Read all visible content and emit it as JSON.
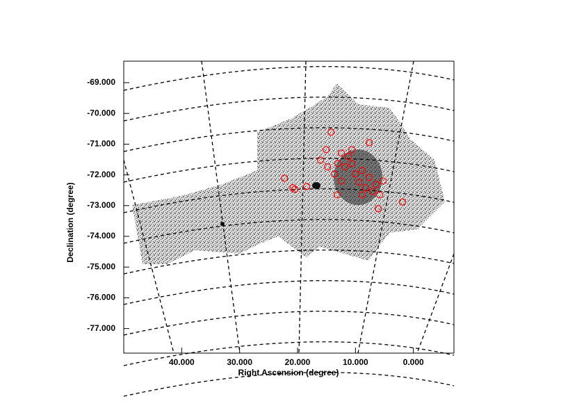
{
  "chart_data": {
    "type": "scatter",
    "x_label": "Right Ascension (degree)",
    "y_label": "Declination (degree)",
    "xlim": [
      50,
      -7
    ],
    "ylim": [
      -77.8,
      -68.3
    ],
    "xticks": [
      {
        "value": 40,
        "label": "40.000"
      },
      {
        "value": 30,
        "label": "30.000"
      },
      {
        "value": 20,
        "label": "20.000"
      },
      {
        "value": 10,
        "label": "10.000"
      },
      {
        "value": 0,
        "label": "0.000"
      }
    ],
    "yticks": [
      {
        "value": -69,
        "label": "-69.000"
      },
      {
        "value": -70,
        "label": "-70.000"
      },
      {
        "value": -71,
        "label": "-71.000"
      },
      {
        "value": -72,
        "label": "-72.000"
      },
      {
        "value": -73,
        "label": "-73.000"
      },
      {
        "value": -74,
        "label": "-74.000"
      },
      {
        "value": -75,
        "label": "-75.000"
      },
      {
        "value": -76,
        "label": "-76.000"
      },
      {
        "value": -77,
        "label": "-77.000"
      }
    ],
    "color": "#ff0000",
    "x": [
      14.22,
      7.63,
      15.06,
      12.42,
      11.22,
      13.02,
      11.82,
      14.82,
      10.62,
      13.62,
      10.02,
      8.82,
      7.63,
      9.42,
      8.22,
      7.03,
      6.43,
      5.23,
      8.82,
      5.83,
      22.25,
      20.82,
      20.46,
      18.42,
      13.14,
      6.07,
      1.87,
      10.62,
      16.02,
      12.42
    ],
    "values": [
      -70.61,
      -70.95,
      -71.18,
      -71.29,
      -71.4,
      -71.63,
      -71.74,
      -71.74,
      -71.63,
      -71.97,
      -71.97,
      -71.86,
      -72.08,
      -72.24,
      -72.42,
      -72.54,
      -72.31,
      -72.2,
      -72.65,
      -72.65,
      -72.11,
      -72.42,
      -72.47,
      -72.38,
      -72.65,
      -73.1,
      -72.88,
      -71.18,
      -71.52,
      -72.2
    ]
  }
}
